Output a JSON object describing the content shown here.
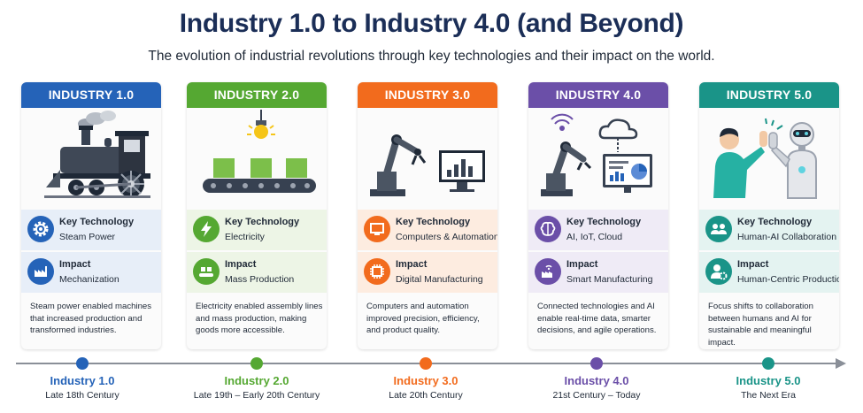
{
  "title": "Industry 1.0 to Industry 4.0 (and Beyond)",
  "subtitle": "The evolution of industrial revolutions through key technologies and their impact on the world.",
  "colors": {
    "title": "#1b2e57",
    "industry1": "#2563b8",
    "industry2": "#55a832",
    "industry3": "#f26b1d",
    "industry4": "#6b4fa8",
    "industry5": "#1a9488"
  },
  "cards": [
    {
      "header": "INDUSTRY 1.0",
      "illustration_icon": "steam-locomotive-icon",
      "key_label": "Key Technology",
      "key_value": "Steam Power",
      "key_icon": "gear-icon",
      "impact_label": "Impact",
      "impact_value": "Mechanization",
      "impact_icon": "factory-icon",
      "description": "Steam power enabled machines that increased production and transformed industries."
    },
    {
      "header": "INDUSTRY 2.0",
      "illustration_icon": "conveyor-belt-icon",
      "key_label": "Key Technology",
      "key_value": "Electricity",
      "key_icon": "lightning-icon",
      "impact_label": "Impact",
      "impact_value": "Mass Production",
      "impact_icon": "conveyor-icon",
      "description": "Electricity enabled assembly lines and mass production, making goods more accessible."
    },
    {
      "header": "INDUSTRY 3.0",
      "illustration_icon": "robot-arm-computer-icon",
      "key_label": "Key Technology",
      "key_value": "Computers & Automation",
      "key_icon": "monitor-icon",
      "impact_label": "Impact",
      "impact_value": "Digital Manufacturing",
      "impact_icon": "chip-icon",
      "description": "Computers and automation improved precision, efficiency, and product quality."
    },
    {
      "header": "INDUSTRY 4.0",
      "illustration_icon": "connected-robot-cloud-icon",
      "key_label": "Key Technology",
      "key_value": "AI, IoT, Cloud",
      "key_icon": "brain-icon",
      "impact_label": "Impact",
      "impact_value": "Smart Manufacturing",
      "impact_icon": "smart-factory-icon",
      "description": "Connected technologies and AI enable real-time data, smarter decisions, and agile operations."
    },
    {
      "header": "INDUSTRY 5.0",
      "illustration_icon": "human-robot-high-five-icon",
      "key_label": "Key Technology",
      "key_value": "Human-AI Collaboration",
      "key_icon": "people-icon",
      "impact_label": "Impact",
      "impact_value": "Human-Centric Production",
      "impact_icon": "person-gear-icon",
      "description": "Focus shifts to collaboration between humans and AI for sustainable and meaningful impact."
    }
  ],
  "timeline": [
    {
      "label": "Industry 1.0",
      "era": "Late 18th Century"
    },
    {
      "label": "Industry 2.0",
      "era": "Late 19th – Early 20th Century"
    },
    {
      "label": "Industry 3.0",
      "era": "Late 20th Century"
    },
    {
      "label": "Industry 4.0",
      "era": "21st Century – Today"
    },
    {
      "label": "Industry 5.0",
      "era": "The Next Era"
    }
  ]
}
